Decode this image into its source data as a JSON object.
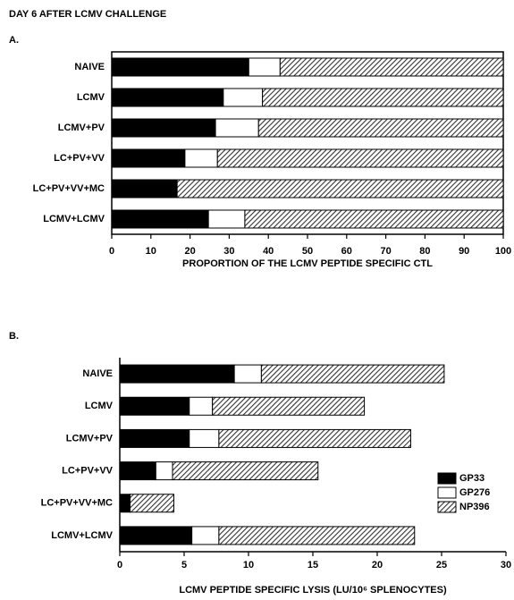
{
  "title": "DAY 6 AFTER LCMV CHALLENGE",
  "chart_data": [
    {
      "type": "bar",
      "orientation": "horizontal",
      "stacked": true,
      "label": "A.",
      "xlabel": "PROPORTION OF THE LCMV PEPTIDE SPECIFIC CTL",
      "categories": [
        "NAIVE",
        "LCMV",
        "LCMV+PV",
        "LC+PV+VV",
        "LC+PV+VV+MC",
        "LCMV+LCMV"
      ],
      "series": [
        {
          "name": "GP33",
          "color": "#000000",
          "values": [
            35,
            28.5,
            26.5,
            18.7,
            16.7,
            24.7
          ]
        },
        {
          "name": "GP276",
          "color": "#ffffff",
          "values": [
            8,
            10,
            11,
            8.3,
            0,
            9.3
          ]
        },
        {
          "name": "NP396",
          "color": "#333333",
          "hatch": true,
          "values": [
            57,
            61.5,
            62.5,
            73,
            83.3,
            66
          ]
        }
      ],
      "xlim": [
        0,
        100
      ],
      "xticks": [
        0,
        10,
        20,
        30,
        40,
        50,
        60,
        70,
        80,
        90,
        100
      ],
      "frame": true,
      "legend": false
    },
    {
      "type": "bar",
      "orientation": "horizontal",
      "stacked": true,
      "label": "B.",
      "xlabel": "LCMV PEPTIDE SPECIFIC LYSIS (LU/10⁶ SPLENOCYTES)",
      "categories": [
        "NAIVE",
        "LCMV",
        "LCMV+PV",
        "LC+PV+VV",
        "LC+PV+VV+MC",
        "LCMV+LCMV"
      ],
      "series": [
        {
          "name": "GP33",
          "color": "#000000",
          "values": [
            8.9,
            5.4,
            5.4,
            2.8,
            0.8,
            5.6
          ]
        },
        {
          "name": "GP276",
          "color": "#ffffff",
          "values": [
            2.1,
            1.8,
            2.3,
            1.3,
            0,
            2.1
          ]
        },
        {
          "name": "NP396",
          "color": "#333333",
          "hatch": true,
          "values": [
            14.2,
            11.8,
            14.9,
            11.3,
            3.4,
            15.2
          ]
        }
      ],
      "xlim": [
        0,
        30
      ],
      "xticks": [
        0,
        5,
        10,
        15,
        20,
        25,
        30
      ],
      "frame": false,
      "legend": "lower right"
    }
  ]
}
